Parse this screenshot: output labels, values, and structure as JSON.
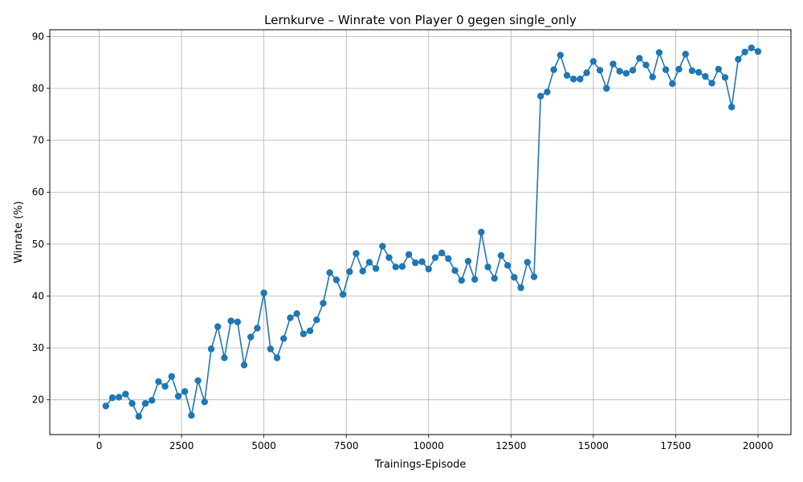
{
  "chart_data": {
    "type": "line",
    "title": "Lernkurve – Winrate von Player 0 gegen single_only",
    "xlabel": "Trainings-Episode",
    "ylabel": "Winrate (%)",
    "xlim": [
      -1500,
      21000
    ],
    "ylim": [
      13.3,
      91.3
    ],
    "xticks": [
      0,
      2500,
      5000,
      7500,
      10000,
      12500,
      15000,
      17500,
      20000
    ],
    "yticks": [
      20,
      30,
      40,
      50,
      60,
      70,
      80,
      90
    ],
    "grid": true,
    "color": "#1f77b4",
    "series": [
      {
        "name": "Winrate",
        "x": [
          200,
          400,
          600,
          800,
          1000,
          1200,
          1400,
          1600,
          1800,
          2000,
          2200,
          2400,
          2600,
          2800,
          3000,
          3200,
          3400,
          3600,
          3800,
          4000,
          4200,
          4400,
          4600,
          4800,
          5000,
          5200,
          5400,
          5600,
          5800,
          6000,
          6200,
          6400,
          6600,
          6800,
          7000,
          7200,
          7400,
          7600,
          7800,
          8000,
          8200,
          8400,
          8600,
          8800,
          9000,
          9200,
          9400,
          9600,
          9800,
          10000,
          10200,
          10400,
          10600,
          10800,
          11000,
          11200,
          11400,
          11600,
          11800,
          12000,
          12200,
          12400,
          12600,
          12800,
          13000,
          13200,
          13400,
          13600,
          13800,
          14000,
          14200,
          14400,
          14600,
          14800,
          15000,
          15200,
          15400,
          15600,
          15800,
          16000,
          16200,
          16400,
          16600,
          16800,
          17000,
          17200,
          17400,
          17600,
          17800,
          18000,
          18200,
          18400,
          18600,
          18800,
          19000,
          19200,
          19400,
          19600,
          19800,
          20000
        ],
        "y": [
          18.8,
          20.4,
          20.5,
          21.1,
          19.3,
          16.8,
          19.3,
          19.9,
          23.5,
          22.6,
          24.5,
          20.7,
          21.6,
          17.0,
          23.7,
          19.6,
          29.8,
          34.1,
          28.1,
          35.2,
          35.0,
          26.7,
          32.1,
          33.8,
          40.6,
          29.8,
          28.1,
          31.8,
          35.8,
          36.6,
          32.7,
          33.3,
          35.4,
          38.6,
          44.5,
          43.1,
          40.3,
          44.7,
          48.2,
          44.8,
          46.5,
          45.3,
          49.6,
          47.4,
          45.6,
          45.7,
          48.0,
          46.4,
          46.6,
          45.2,
          47.4,
          48.3,
          47.2,
          44.9,
          43.0,
          46.7,
          43.2,
          52.3,
          45.6,
          43.4,
          47.8,
          45.9,
          43.6,
          41.6,
          46.5,
          43.7,
          78.5,
          79.3,
          83.6,
          86.4,
          82.5,
          81.8,
          81.8,
          83.0,
          85.2,
          83.5,
          80.0,
          84.7,
          83.3,
          82.9,
          83.5,
          85.8,
          84.5,
          82.2,
          86.9,
          83.6,
          80.9,
          83.7,
          86.6,
          83.4,
          83.1,
          82.3,
          81.0,
          83.7,
          82.1,
          76.4,
          85.6,
          87.0,
          87.8,
          87.1
        ]
      }
    ]
  }
}
